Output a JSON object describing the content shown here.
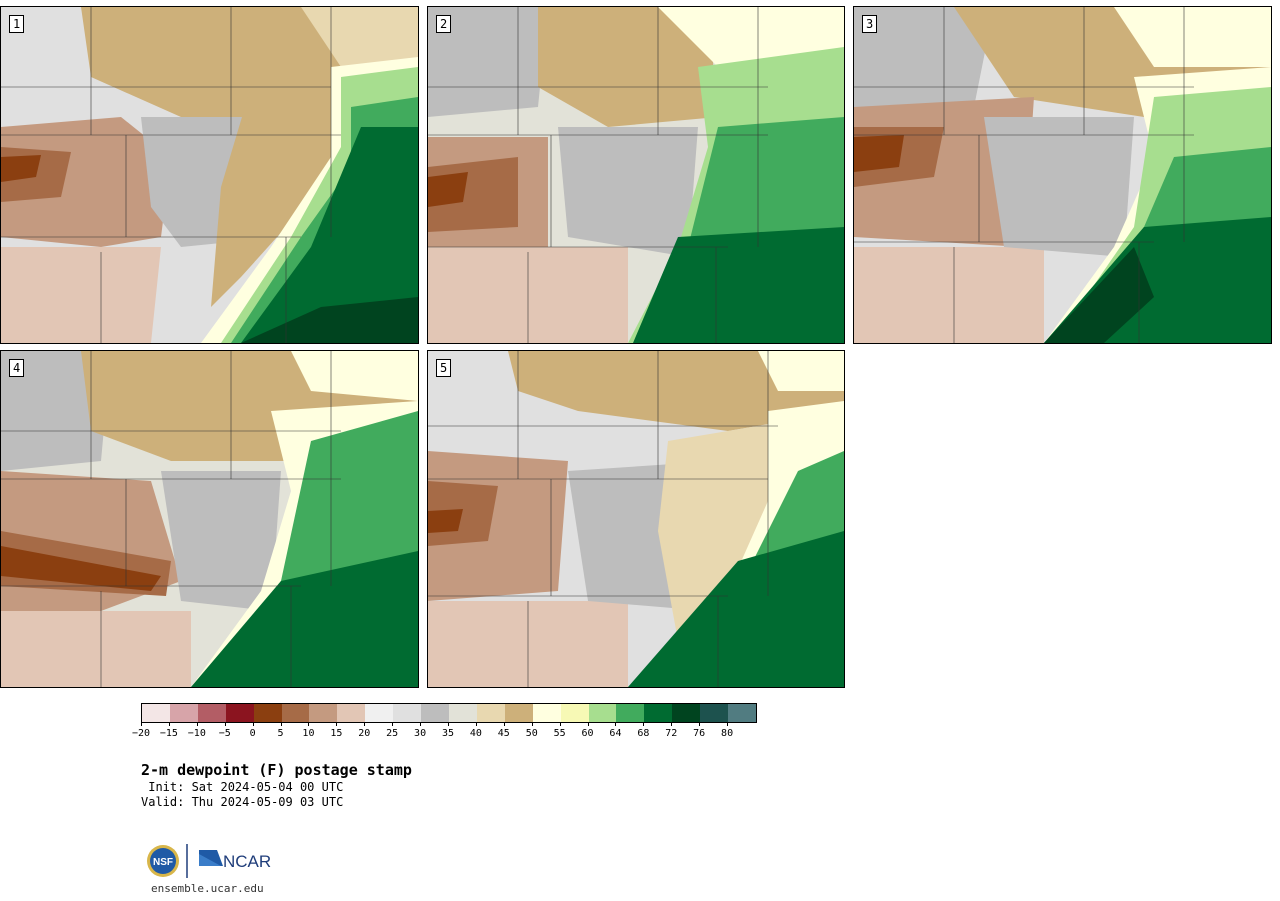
{
  "panels": [
    {
      "label": "1"
    },
    {
      "label": "2"
    },
    {
      "label": "3"
    },
    {
      "label": "4"
    },
    {
      "label": "5"
    }
  ],
  "colorbar": {
    "colors": [
      "#f3e6e6",
      "#d7a4a9",
      "#b35d65",
      "#8b141f",
      "#8b3f10",
      "#a66b47",
      "#c49a80",
      "#e2c6b5",
      "#f0f0f0",
      "#e0e0e0",
      "#bdbdbd",
      "#e2e2d8",
      "#e8d8b0",
      "#cdb07a",
      "#ffffe0",
      "#f7f9b5",
      "#a7de8f",
      "#41ab5d",
      "#006b31",
      "#00441f",
      "#1d524e",
      "#517c81"
    ],
    "tick_labels": [
      "−20",
      "−15",
      "−10",
      "−5",
      "0",
      "5",
      "10",
      "15",
      "20",
      "25",
      "30",
      "35",
      "40",
      "45",
      "50",
      "55",
      "60",
      "64",
      "68",
      "72",
      "76",
      "80"
    ]
  },
  "title": "2-m dewpoint (F) postage stamp",
  "init": " Init: Sat 2024-05-04 00 UTC",
  "valid": "Valid: Thu 2024-05-09 03 UTC",
  "logo": {
    "left": "NSF",
    "right": "NCAR"
  },
  "url": "ensemble.ucar.edu",
  "colors": {
    "moist": "#006b31",
    "dry": "#c49a80",
    "grey": "#bdbdbd",
    "tan": "#cdb07a",
    "yellow": "#ffffe0",
    "green": "#a7de8f"
  }
}
